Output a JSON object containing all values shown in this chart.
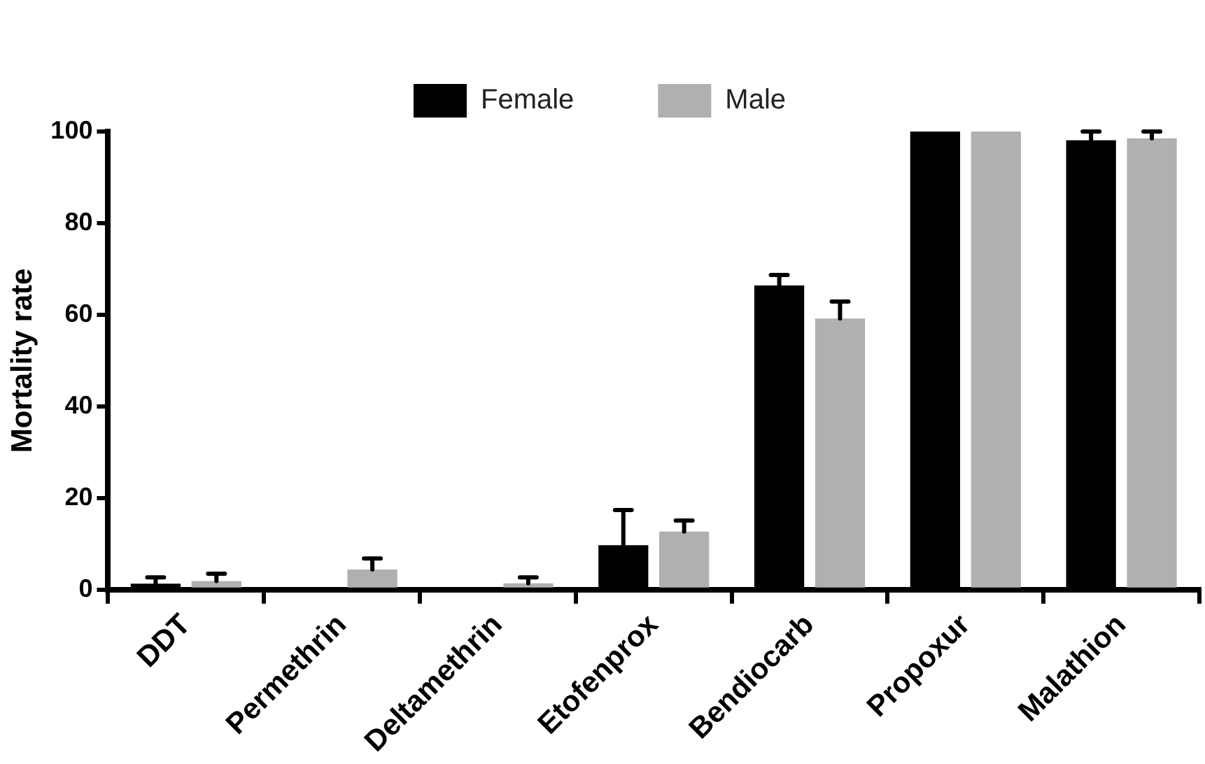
{
  "chart_data": {
    "type": "bar",
    "ylabel": "Mortality rate",
    "categories": [
      "DDT",
      "Permethrin",
      "Deltamethrin",
      "Etofenprox",
      "Bendiocarb",
      "Propoxur",
      "Malathion"
    ],
    "series": [
      {
        "name": "Female",
        "color": "#000000",
        "values": [
          1.3,
          0,
          0,
          9.7,
          66.4,
          100,
          98.1
        ],
        "errors": [
          [
            1.3,
            2.7
          ],
          null,
          null,
          [
            9.7,
            17.4
          ],
          [
            66.4,
            68.7
          ],
          null,
          [
            98.1,
            100
          ]
        ]
      },
      {
        "name": "Male",
        "color": "#b0b0b0",
        "values": [
          1.9,
          4.4,
          1.4,
          12.7,
          59.2,
          100,
          98.5
        ],
        "errors": [
          [
            1.9,
            3.5
          ],
          [
            4.4,
            6.8
          ],
          [
            1.4,
            2.7
          ],
          [
            12.7,
            15.1
          ],
          [
            59.2,
            62.9
          ],
          null,
          [
            98.5,
            100
          ]
        ]
      }
    ],
    "ylim": [
      0,
      100
    ],
    "yticks": [
      0,
      20,
      40,
      60,
      80,
      100
    ],
    "grid": false,
    "legend": "top"
  }
}
